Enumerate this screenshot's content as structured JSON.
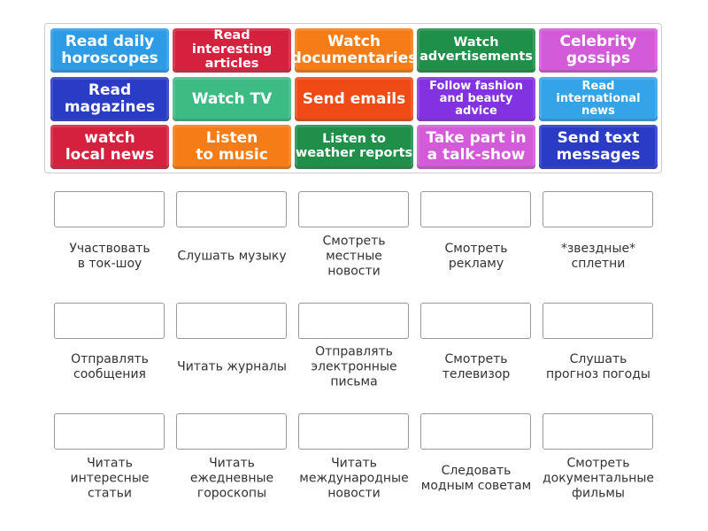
{
  "tiles": [
    {
      "text": "Read daily\nhoroscopes",
      "color": "#2e9be6"
    },
    {
      "text": "Read interesting\narticles",
      "color": "#d6213e"
    },
    {
      "text": "Watch\ndocumentaries",
      "color": "#f57c16"
    },
    {
      "text": "Watch\nadvertisements",
      "color": "#1f8f4a"
    },
    {
      "text": "Celebrity\ngossips",
      "color": "#d35ad8"
    },
    {
      "text": "Read\nmagazines",
      "color": "#2a3cc6"
    },
    {
      "text": "Watch TV",
      "color": "#3dbb85"
    },
    {
      "text": "Send emails",
      "color": "#f04a16"
    },
    {
      "text": "Follow fashion\nand beauty advice",
      "color": "#8232e0"
    },
    {
      "text": "Read international\nnews",
      "color": "#35a3e8"
    },
    {
      "text": "watch\nlocal news",
      "color": "#d6213e"
    },
    {
      "text": "Listen\nto music",
      "color": "#f57c16"
    },
    {
      "text": "Listen to\nweather reports",
      "color": "#1f8f4a"
    },
    {
      "text": "Take part in\na talk-show",
      "color": "#d35ad8"
    },
    {
      "text": "Send text\nmessages",
      "color": "#2a3cc6"
    }
  ],
  "targets": [
    "Участвовать\nв ток-шоу",
    "Слушать музыку",
    "Смотреть\nместные\nновости",
    "Смотреть\nрекламу",
    "*звездные*\nсплетни",
    "Отправлять\nсообщения",
    "Читать журналы",
    "Отправлять\nэлектронные\nписьма",
    "Смотреть\nтелевизор",
    "Слушать\nпрогноз погоды",
    "Читать\nинтересные\nстатьи",
    "Читать\nежедневные\nгороскопы",
    "Читать\nмеждународные\nновости",
    "Следовать\nмодным советам",
    "Смотреть\nдокументальные\nфильмы"
  ]
}
